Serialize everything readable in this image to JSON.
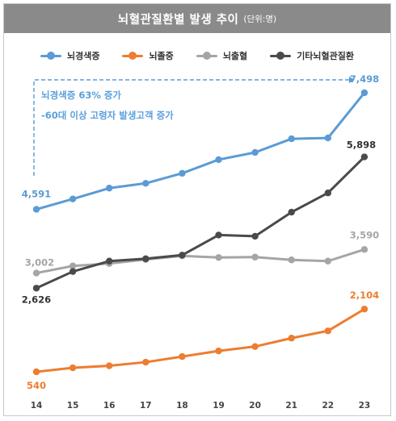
{
  "header": {
    "title": "뇌혈관질환별 발생 추이",
    "unit": "(단위:명)"
  },
  "annotation": {
    "line1": "뇌경색증 63% 증가",
    "line2": "-60대 이상 고령자 발생고객 증가"
  },
  "chart_data": {
    "type": "line",
    "title": "뇌혈관질환별 발생 추이",
    "categories": [
      "14",
      "15",
      "16",
      "17",
      "18",
      "19",
      "20",
      "21",
      "22",
      "23"
    ],
    "series": [
      {
        "name": "뇌경색증",
        "color": "#5b9bd5",
        "values": [
          4591,
          4850,
          5120,
          5240,
          5490,
          5830,
          6010,
          6350,
          6370,
          7498
        ]
      },
      {
        "name": "뇌졸중",
        "color": "#ed7d31",
        "values": [
          540,
          640,
          690,
          780,
          920,
          1060,
          1170,
          1380,
          1560,
          2104
        ]
      },
      {
        "name": "뇌출혈",
        "color": "#a5a5a5",
        "values": [
          3002,
          3180,
          3240,
          3340,
          3430,
          3390,
          3400,
          3330,
          3300,
          3590
        ]
      },
      {
        "name": "기타뇌혈관질환",
        "color": "#4a4a4a",
        "values": [
          2626,
          3040,
          3300,
          3360,
          3450,
          3950,
          3920,
          4520,
          5000,
          5898
        ]
      }
    ],
    "data_labels": [
      {
        "series": 0,
        "point": 0,
        "text": "4,591"
      },
      {
        "series": 0,
        "point": 9,
        "text": "7,498"
      },
      {
        "series": 1,
        "point": 0,
        "text": "540"
      },
      {
        "series": 1,
        "point": 9,
        "text": "2,104"
      },
      {
        "series": 2,
        "point": 0,
        "text": "3,002"
      },
      {
        "series": 2,
        "point": 9,
        "text": "3,590"
      },
      {
        "series": 3,
        "point": 0,
        "text": "2,626"
      },
      {
        "series": 3,
        "point": 9,
        "text": "5,898"
      }
    ],
    "ylim": [
      0,
      8000
    ],
    "grid": false,
    "legend_position": "top"
  }
}
